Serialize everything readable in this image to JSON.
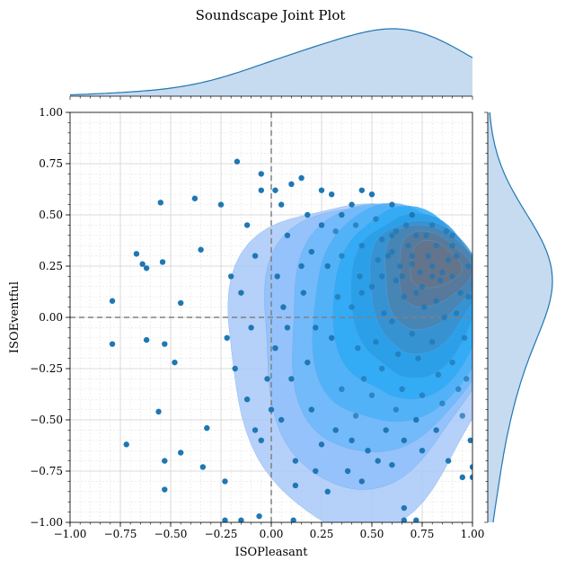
{
  "chart_data": {
    "type": "scatter",
    "title": "Soundscape Joint Plot",
    "xlabel": "ISOPleasant",
    "ylabel": "ISOEventful",
    "xlim": [
      -1.0,
      1.0
    ],
    "ylim": [
      -1.0,
      1.0
    ],
    "xticks": [
      "−1.00",
      "−0.75",
      "−0.50",
      "−0.25",
      "0.00",
      "0.25",
      "0.50",
      "0.75",
      "1.00"
    ],
    "yticks": [
      "−1.00",
      "−0.75",
      "−0.50",
      "−0.25",
      "0.00",
      "0.25",
      "0.50",
      "0.75",
      "1.00"
    ],
    "grid": true,
    "reference_lines": {
      "x": 0.0,
      "y": 0.0
    },
    "marginal_x_density": true,
    "marginal_y_density": true,
    "density_contours": true,
    "colors": {
      "points": "#1f77b4",
      "marginal_fill": "#c6dbef",
      "marginal_line": "#1f77b4",
      "kde_levels": [
        "#a8c8f8",
        "#8fc0fa",
        "#6db8f9",
        "#4cb0f7",
        "#2fa9f5",
        "#2a9ee6",
        "#3a8fcc",
        "#4a82b0",
        "#5a7898",
        "#667488"
      ]
    },
    "points": [
      [
        -0.79,
        0.08
      ],
      [
        -0.79,
        -0.13
      ],
      [
        -0.72,
        -0.62
      ],
      [
        -0.67,
        0.31
      ],
      [
        -0.64,
        0.26
      ],
      [
        -0.62,
        0.24
      ],
      [
        -0.62,
        -0.11
      ],
      [
        -0.55,
        0.56
      ],
      [
        -0.54,
        0.27
      ],
      [
        -0.53,
        -0.13
      ],
      [
        -0.56,
        -0.46
      ],
      [
        -0.53,
        -0.7
      ],
      [
        -0.53,
        -0.84
      ],
      [
        -0.48,
        -0.22
      ],
      [
        -0.45,
        0.07
      ],
      [
        -0.45,
        -0.66
      ],
      [
        -0.38,
        0.58
      ],
      [
        -0.35,
        0.33
      ],
      [
        -0.34,
        -0.73
      ],
      [
        -0.32,
        -0.54
      ],
      [
        -0.23,
        -0.8
      ],
      [
        -0.17,
        0.76
      ],
      [
        -0.05,
        0.7
      ],
      [
        -0.23,
        -0.99
      ],
      [
        -0.15,
        -0.99
      ],
      [
        -0.06,
        -0.97
      ],
      [
        0.11,
        -0.99
      ],
      [
        0.66,
        -0.99
      ],
      [
        0.72,
        -0.99
      ],
      [
        0.66,
        -0.93
      ],
      [
        0.95,
        -0.78
      ],
      [
        1.0,
        -0.78
      ],
      [
        1.0,
        -0.73
      ],
      [
        -0.12,
        0.45
      ],
      [
        -0.08,
        0.3
      ],
      [
        -0.15,
        0.12
      ],
      [
        -0.1,
        -0.05
      ],
      [
        -0.18,
        -0.25
      ],
      [
        -0.12,
        -0.4
      ],
      [
        -0.05,
        -0.6
      ],
      [
        0.02,
        0.62
      ],
      [
        0.05,
        0.55
      ],
      [
        0.08,
        0.4
      ],
      [
        0.03,
        0.2
      ],
      [
        0.06,
        0.05
      ],
      [
        0.02,
        -0.15
      ],
      [
        0.1,
        -0.3
      ],
      [
        0.05,
        -0.5
      ],
      [
        0.12,
        -0.7
      ],
      [
        0.15,
        0.68
      ],
      [
        0.18,
        0.5
      ],
      [
        0.2,
        0.32
      ],
      [
        0.16,
        0.12
      ],
      [
        0.22,
        -0.05
      ],
      [
        0.18,
        -0.22
      ],
      [
        0.2,
        -0.45
      ],
      [
        0.25,
        -0.62
      ],
      [
        0.28,
        -0.85
      ],
      [
        0.3,
        0.6
      ],
      [
        0.32,
        0.42
      ],
      [
        0.28,
        0.25
      ],
      [
        0.33,
        0.1
      ],
      [
        0.3,
        -0.1
      ],
      [
        0.35,
        -0.35
      ],
      [
        0.32,
        -0.55
      ],
      [
        0.38,
        -0.75
      ],
      [
        0.4,
        0.55
      ],
      [
        0.42,
        0.45
      ],
      [
        0.45,
        0.35
      ],
      [
        0.44,
        0.2
      ],
      [
        0.4,
        0.05
      ],
      [
        0.43,
        -0.15
      ],
      [
        0.46,
        -0.3
      ],
      [
        0.42,
        -0.48
      ],
      [
        0.48,
        -0.65
      ],
      [
        0.45,
        -0.8
      ],
      [
        0.5,
        0.6
      ],
      [
        0.52,
        0.48
      ],
      [
        0.55,
        0.38
      ],
      [
        0.53,
        0.28
      ],
      [
        0.5,
        0.15
      ],
      [
        0.56,
        0.02
      ],
      [
        0.52,
        -0.12
      ],
      [
        0.55,
        -0.25
      ],
      [
        0.5,
        -0.38
      ],
      [
        0.57,
        -0.55
      ],
      [
        0.53,
        -0.7
      ],
      [
        0.6,
        0.55
      ],
      [
        0.62,
        0.42
      ],
      [
        0.6,
        0.32
      ],
      [
        0.64,
        0.25
      ],
      [
        0.62,
        0.18
      ],
      [
        0.66,
        0.1
      ],
      [
        0.6,
        -0.02
      ],
      [
        0.63,
        -0.18
      ],
      [
        0.65,
        -0.35
      ],
      [
        0.62,
        -0.45
      ],
      [
        0.66,
        -0.6
      ],
      [
        0.7,
        0.5
      ],
      [
        0.72,
        0.4
      ],
      [
        0.7,
        0.3
      ],
      [
        0.74,
        0.22
      ],
      [
        0.72,
        0.12
      ],
      [
        0.76,
        0.05
      ],
      [
        0.7,
        -0.08
      ],
      [
        0.73,
        -0.2
      ],
      [
        0.75,
        -0.38
      ],
      [
        0.72,
        -0.5
      ],
      [
        0.8,
        0.45
      ],
      [
        0.82,
        0.35
      ],
      [
        0.8,
        0.25
      ],
      [
        0.84,
        0.18
      ],
      [
        0.82,
        0.08
      ],
      [
        0.86,
        0.0
      ],
      [
        0.8,
        -0.12
      ],
      [
        0.83,
        -0.28
      ],
      [
        0.85,
        -0.42
      ],
      [
        0.82,
        -0.55
      ],
      [
        0.9,
        0.4
      ],
      [
        0.92,
        0.3
      ],
      [
        0.9,
        0.2
      ],
      [
        0.94,
        0.12
      ],
      [
        0.92,
        0.02
      ],
      [
        0.96,
        -0.1
      ],
      [
        0.9,
        -0.22
      ],
      [
        0.93,
        -0.35
      ],
      [
        0.95,
        -0.48
      ],
      [
        0.98,
        0.25
      ],
      [
        0.98,
        0.1
      ],
      [
        0.97,
        -0.3
      ],
      [
        0.99,
        -0.6
      ],
      [
        0.58,
        0.3
      ],
      [
        0.68,
        0.35
      ],
      [
        0.78,
        0.3
      ],
      [
        0.88,
        0.28
      ],
      [
        0.65,
        0.2
      ],
      [
        0.75,
        0.15
      ],
      [
        0.85,
        0.22
      ],
      [
        0.7,
        0.26
      ],
      [
        0.8,
        0.2
      ],
      [
        0.6,
        0.4
      ],
      [
        0.9,
        0.35
      ],
      [
        0.67,
        0.45
      ],
      [
        0.77,
        0.4
      ],
      [
        0.87,
        0.42
      ],
      [
        0.55,
        0.2
      ],
      [
        0.45,
        0.12
      ],
      [
        0.35,
        0.3
      ],
      [
        0.25,
        0.45
      ],
      [
        0.15,
        0.25
      ],
      [
        0.08,
        -0.05
      ],
      [
        -0.02,
        -0.3
      ],
      [
        0.0,
        -0.45
      ],
      [
        -0.08,
        -0.55
      ],
      [
        0.12,
        -0.82
      ],
      [
        0.22,
        -0.75
      ],
      [
        0.4,
        -0.6
      ],
      [
        0.6,
        -0.72
      ],
      [
        0.75,
        -0.65
      ],
      [
        0.88,
        -0.7
      ],
      [
        -0.2,
        0.2
      ],
      [
        -0.22,
        -0.1
      ],
      [
        -0.25,
        0.55
      ],
      [
        -0.05,
        0.62
      ],
      [
        0.1,
        0.65
      ],
      [
        0.25,
        0.62
      ],
      [
        0.45,
        0.62
      ],
      [
        0.35,
        0.5
      ]
    ]
  }
}
